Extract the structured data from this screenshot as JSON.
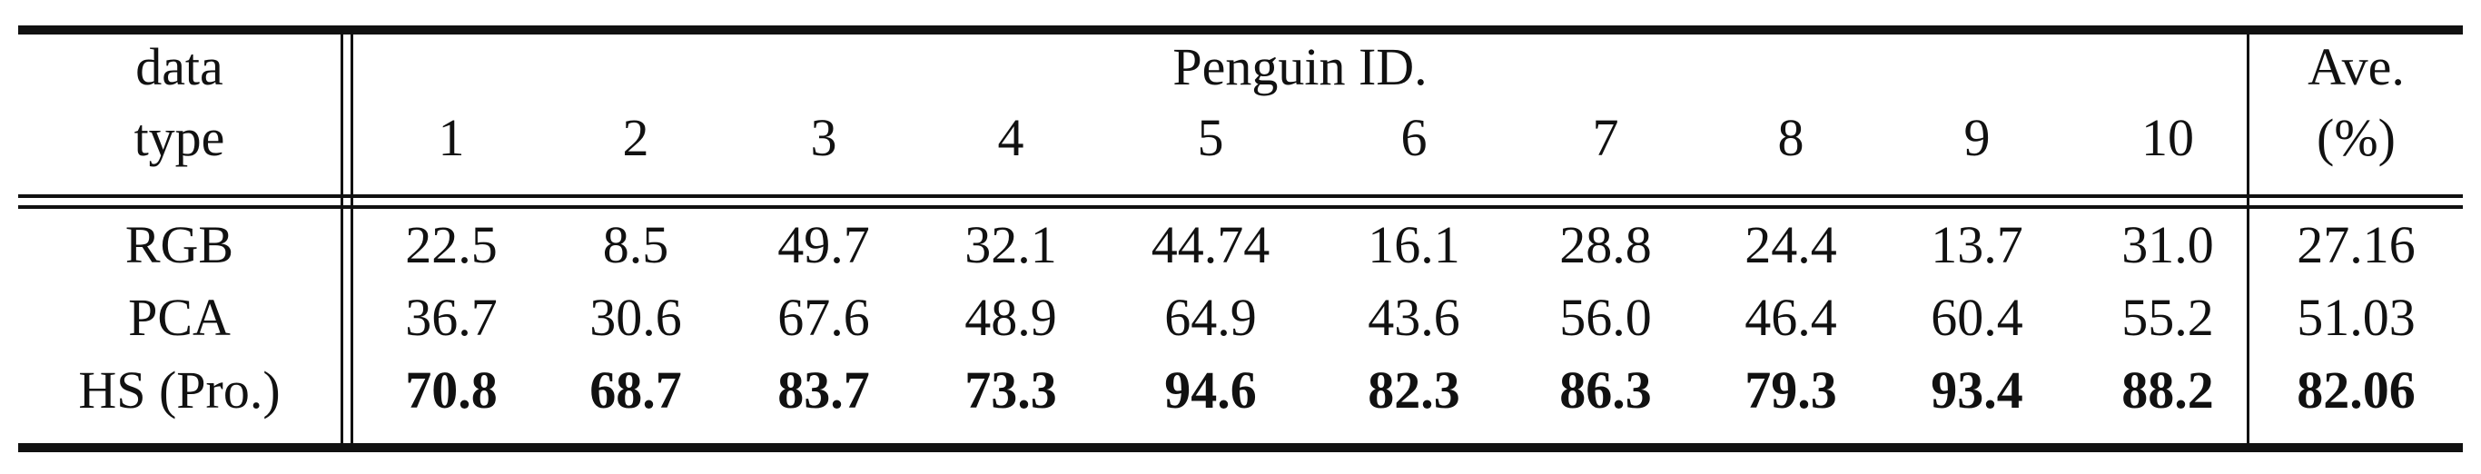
{
  "table": {
    "header": {
      "type_label_line1": "data",
      "type_label_line2": "type",
      "group_label": "Penguin ID.",
      "ids": [
        "1",
        "2",
        "3",
        "4",
        "5",
        "6",
        "7",
        "8",
        "9",
        "10"
      ],
      "avg_label_line1": "Ave.",
      "avg_label_line2": "(%)"
    },
    "rows": [
      {
        "type": "RGB",
        "values": [
          "22.5",
          "8.5",
          "49.7",
          "32.1",
          "44.74",
          "16.1",
          "28.8",
          "24.4",
          "13.7",
          "31.0"
        ],
        "avg": "27.16",
        "bold": false
      },
      {
        "type": "PCA",
        "values": [
          "36.7",
          "30.6",
          "67.6",
          "48.9",
          "64.9",
          "43.6",
          "56.0",
          "46.4",
          "60.4",
          "55.2"
        ],
        "avg": "51.03",
        "bold": false
      },
      {
        "type": "HS (Pro.)",
        "values": [
          "70.8",
          "68.7",
          "83.7",
          "73.3",
          "94.6",
          "82.3",
          "86.3",
          "79.3",
          "93.4",
          "88.2"
        ],
        "avg": "82.06",
        "bold": true
      }
    ]
  }
}
